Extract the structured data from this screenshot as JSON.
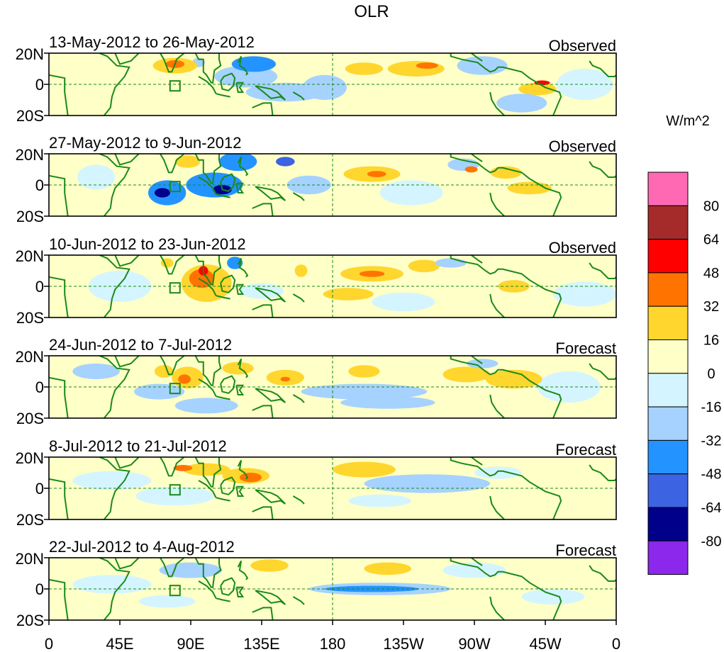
{
  "chart_data": {
    "type": "heatmap",
    "title": "OLR",
    "units": "W/m^2",
    "x_ticks": [
      "0",
      "45E",
      "90E",
      "135E",
      "180",
      "135W",
      "90W",
      "45W",
      "0"
    ],
    "y_ticks": [
      "20N",
      "0",
      "20S"
    ],
    "xlim_deg_east": [
      0,
      360
    ],
    "ylim_deg": [
      -20,
      20
    ],
    "colorbar": {
      "levels": [
        "80",
        "64",
        "48",
        "32",
        "16",
        "0",
        "-16",
        "-32",
        "-48",
        "-64",
        "-80"
      ],
      "colors": [
        "#ff69b4",
        "#a52a2a",
        "#ff0000",
        "#ff7400",
        "#ffd62e",
        "#ffffc8",
        "#d4f5ff",
        "#a6d2ff",
        "#2394ff",
        "#3c64e2",
        "#00008b",
        "#8b28eb"
      ]
    },
    "panels": [
      {
        "period": "13-May-2012 to 26-May-2012",
        "label": "Observed",
        "anomalies": [
          {
            "lon": 80,
            "lat": 12,
            "rx": 14,
            "ry": 5,
            "v": 24
          },
          {
            "lon": 80,
            "lat": 13,
            "rx": 6,
            "ry": 2.5,
            "v": 40
          },
          {
            "lon": 95,
            "lat": 14,
            "rx": 4,
            "ry": 3,
            "v": -20
          },
          {
            "lon": 125,
            "lat": 5,
            "rx": 20,
            "ry": 7,
            "v": -22
          },
          {
            "lon": 130,
            "lat": 13,
            "rx": 14,
            "ry": 5,
            "v": -35
          },
          {
            "lon": 150,
            "lat": -5,
            "rx": 25,
            "ry": 6,
            "v": -22
          },
          {
            "lon": 175,
            "lat": -2,
            "rx": 14,
            "ry": 8,
            "v": -18
          },
          {
            "lon": 200,
            "lat": 10,
            "rx": 12,
            "ry": 4,
            "v": 20
          },
          {
            "lon": 233,
            "lat": 10,
            "rx": 18,
            "ry": 5,
            "v": 22
          },
          {
            "lon": 240,
            "lat": 12,
            "rx": 7,
            "ry": 2,
            "v": 35
          },
          {
            "lon": 275,
            "lat": 12,
            "rx": 16,
            "ry": 6,
            "v": -30
          },
          {
            "lon": 310,
            "lat": -3,
            "rx": 12,
            "ry": 4,
            "v": 22
          },
          {
            "lon": 313,
            "lat": 1,
            "rx": 5,
            "ry": 1.5,
            "v": 50
          },
          {
            "lon": 300,
            "lat": -12,
            "rx": 16,
            "ry": 6,
            "v": -22
          },
          {
            "lon": 35,
            "lat": -5,
            "rx": 15,
            "ry": 10,
            "v": 10
          },
          {
            "lon": 340,
            "lat": 0,
            "rx": 18,
            "ry": 10,
            "v": -12
          }
        ]
      },
      {
        "period": "27-May-2012 to 9-Jun-2012",
        "label": "Observed",
        "anomalies": [
          {
            "lon": 75,
            "lat": -5,
            "rx": 12,
            "ry": 8,
            "v": -45
          },
          {
            "lon": 72,
            "lat": -5,
            "rx": 5,
            "ry": 3,
            "v": -70
          },
          {
            "lon": 105,
            "lat": 0,
            "rx": 18,
            "ry": 8,
            "v": -45
          },
          {
            "lon": 110,
            "lat": -3,
            "rx": 6,
            "ry": 3,
            "v": -70
          },
          {
            "lon": 120,
            "lat": 15,
            "rx": 12,
            "ry": 6,
            "v": -35
          },
          {
            "lon": 150,
            "lat": 15,
            "rx": 6,
            "ry": 3,
            "v": -50
          },
          {
            "lon": 165,
            "lat": 0,
            "rx": 14,
            "ry": 6,
            "v": -20
          },
          {
            "lon": 205,
            "lat": 7,
            "rx": 18,
            "ry": 5,
            "v": 24
          },
          {
            "lon": 208,
            "lat": 7,
            "rx": 6,
            "ry": 2,
            "v": 40
          },
          {
            "lon": 263,
            "lat": 13,
            "rx": 10,
            "ry": 4,
            "v": -32
          },
          {
            "lon": 268,
            "lat": 10,
            "rx": 4,
            "ry": 2,
            "v": 40
          },
          {
            "lon": 290,
            "lat": 8,
            "rx": 10,
            "ry": 4,
            "v": 20
          },
          {
            "lon": 305,
            "lat": -2,
            "rx": 14,
            "ry": 4,
            "v": 18
          },
          {
            "lon": 30,
            "lat": 5,
            "rx": 12,
            "ry": 8,
            "v": -14
          },
          {
            "lon": 88,
            "lat": 15,
            "rx": 8,
            "ry": 4,
            "v": 20
          },
          {
            "lon": 230,
            "lat": -5,
            "rx": 20,
            "ry": 8,
            "v": -12
          }
        ]
      },
      {
        "period": "10-Jun-2012 to 23-Jun-2012",
        "label": "Observed",
        "anomalies": [
          {
            "lon": 100,
            "lat": 2,
            "rx": 16,
            "ry": 12,
            "v": 26
          },
          {
            "lon": 97,
            "lat": 5,
            "rx": 8,
            "ry": 6,
            "v": 45
          },
          {
            "lon": 98,
            "lat": 10,
            "rx": 3,
            "ry": 3,
            "v": 60
          },
          {
            "lon": 118,
            "lat": 15,
            "rx": 5,
            "ry": 4,
            "v": -45
          },
          {
            "lon": 75,
            "lat": 15,
            "rx": 4,
            "ry": 3,
            "v": 20
          },
          {
            "lon": 160,
            "lat": 10,
            "rx": 4,
            "ry": 4,
            "v": 22
          },
          {
            "lon": 205,
            "lat": 8,
            "rx": 20,
            "ry": 5,
            "v": 24
          },
          {
            "lon": 205,
            "lat": 8,
            "rx": 8,
            "ry": 2,
            "v": 40
          },
          {
            "lon": 238,
            "lat": 13,
            "rx": 10,
            "ry": 4,
            "v": 20
          },
          {
            "lon": 255,
            "lat": 15,
            "rx": 10,
            "ry": 3,
            "v": -30
          },
          {
            "lon": 295,
            "lat": 0,
            "rx": 10,
            "ry": 4,
            "v": 20
          },
          {
            "lon": 45,
            "lat": 0,
            "rx": 20,
            "ry": 10,
            "v": -12
          },
          {
            "lon": 135,
            "lat": -3,
            "rx": 14,
            "ry": 5,
            "v": -12
          },
          {
            "lon": 190,
            "lat": -5,
            "rx": 16,
            "ry": 4,
            "v": 18
          },
          {
            "lon": 225,
            "lat": -10,
            "rx": 20,
            "ry": 6,
            "v": -12
          },
          {
            "lon": 340,
            "lat": -5,
            "rx": 20,
            "ry": 8,
            "v": -10
          }
        ]
      },
      {
        "period": "24-Jun-2012 to 7-Jul-2012",
        "label": "Forecast",
        "anomalies": [
          {
            "lon": 88,
            "lat": 6,
            "rx": 10,
            "ry": 7,
            "v": 22
          },
          {
            "lon": 86,
            "lat": 5,
            "rx": 4,
            "ry": 3,
            "v": 40
          },
          {
            "lon": 73,
            "lat": 10,
            "rx": 6,
            "ry": 4,
            "v": 20
          },
          {
            "lon": 150,
            "lat": 6,
            "rx": 12,
            "ry": 5,
            "v": 22
          },
          {
            "lon": 150,
            "lat": 5,
            "rx": 3,
            "ry": 1.5,
            "v": 40
          },
          {
            "lon": 120,
            "lat": 12,
            "rx": 10,
            "ry": 4,
            "v": 18
          },
          {
            "lon": 30,
            "lat": 10,
            "rx": 15,
            "ry": 5,
            "v": -18
          },
          {
            "lon": 70,
            "lat": -3,
            "rx": 16,
            "ry": 5,
            "v": -20
          },
          {
            "lon": 100,
            "lat": -12,
            "rx": 20,
            "ry": 5,
            "v": -18
          },
          {
            "lon": 200,
            "lat": 10,
            "rx": 10,
            "ry": 4,
            "v": 18
          },
          {
            "lon": 200,
            "lat": -3,
            "rx": 40,
            "ry": 5,
            "v": -20
          },
          {
            "lon": 215,
            "lat": -10,
            "rx": 30,
            "ry": 4,
            "v": -18
          },
          {
            "lon": 265,
            "lat": 8,
            "rx": 15,
            "ry": 5,
            "v": 18
          },
          {
            "lon": 295,
            "lat": 5,
            "rx": 18,
            "ry": 6,
            "v": 24
          },
          {
            "lon": 275,
            "lat": 15,
            "rx": 10,
            "ry": 3,
            "v": -20
          },
          {
            "lon": 330,
            "lat": 0,
            "rx": 20,
            "ry": 10,
            "v": -10
          }
        ]
      },
      {
        "period": "8-Jul-2012 to 21-Jul-2012",
        "label": "Forecast",
        "anomalies": [
          {
            "lon": 100,
            "lat": 12,
            "rx": 15,
            "ry": 4,
            "v": 24
          },
          {
            "lon": 85,
            "lat": 13,
            "rx": 6,
            "ry": 2,
            "v": 40
          },
          {
            "lon": 125,
            "lat": 8,
            "rx": 15,
            "ry": 5,
            "v": 24
          },
          {
            "lon": 128,
            "lat": 7,
            "rx": 7,
            "ry": 3,
            "v": 40
          },
          {
            "lon": 200,
            "lat": 12,
            "rx": 20,
            "ry": 5,
            "v": 22
          },
          {
            "lon": 240,
            "lat": 3,
            "rx": 40,
            "ry": 6,
            "v": -18
          },
          {
            "lon": 210,
            "lat": -8,
            "rx": 20,
            "ry": 4,
            "v": -12
          },
          {
            "lon": 40,
            "lat": 5,
            "rx": 25,
            "ry": 6,
            "v": -12
          },
          {
            "lon": 80,
            "lat": -5,
            "rx": 25,
            "ry": 6,
            "v": -12
          },
          {
            "lon": 285,
            "lat": 10,
            "rx": 15,
            "ry": 4,
            "v": -14
          },
          {
            "lon": 320,
            "lat": 12,
            "rx": 20,
            "ry": 5,
            "v": 10
          },
          {
            "lon": 330,
            "lat": -10,
            "rx": 25,
            "ry": 6,
            "v": 8
          }
        ]
      },
      {
        "period": "22-Jul-2012 to 4-Aug-2012",
        "label": "Forecast",
        "anomalies": [
          {
            "lon": 210,
            "lat": 0,
            "rx": 45,
            "ry": 4,
            "v": -20
          },
          {
            "lon": 205,
            "lat": 0,
            "rx": 30,
            "ry": 2,
            "v": -40
          },
          {
            "lon": 215,
            "lat": 13,
            "rx": 15,
            "ry": 4,
            "v": 20
          },
          {
            "lon": 90,
            "lat": 12,
            "rx": 20,
            "ry": 5,
            "v": -18
          },
          {
            "lon": 140,
            "lat": 15,
            "rx": 12,
            "ry": 4,
            "v": 18
          },
          {
            "lon": 95,
            "lat": 2,
            "rx": 20,
            "ry": 5,
            "v": 14
          },
          {
            "lon": 40,
            "lat": 3,
            "rx": 25,
            "ry": 6,
            "v": -12
          },
          {
            "lon": 75,
            "lat": -8,
            "rx": 18,
            "ry": 4,
            "v": -12
          },
          {
            "lon": 270,
            "lat": 12,
            "rx": 20,
            "ry": 5,
            "v": -14
          },
          {
            "lon": 310,
            "lat": 10,
            "rx": 20,
            "ry": 5,
            "v": 10
          },
          {
            "lon": 320,
            "lat": -5,
            "rx": 20,
            "ry": 5,
            "v": -10
          },
          {
            "lon": 165,
            "lat": -8,
            "rx": 15,
            "ry": 4,
            "v": 12
          }
        ]
      }
    ]
  }
}
